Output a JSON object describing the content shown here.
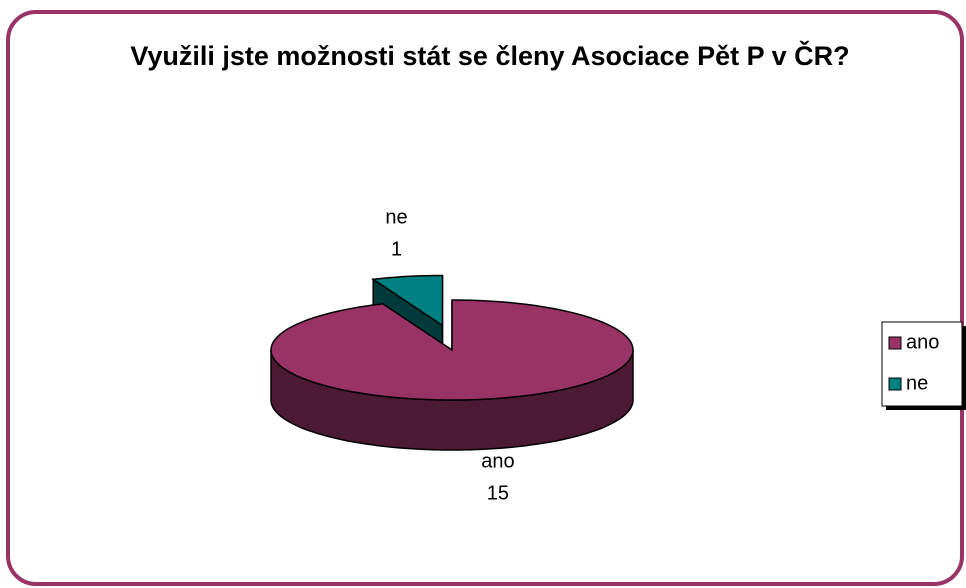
{
  "chart_data": {
    "type": "pie3d",
    "title": "Využili jste možnosti stát se členy Asociace Pět P v ČR?",
    "categories": [
      "ano",
      "ne"
    ],
    "values": [
      15,
      1
    ],
    "series": [
      {
        "name": "ano",
        "color": "#993366"
      },
      {
        "name": "ne",
        "color": "#008080"
      }
    ],
    "legend": "right",
    "exploded": "ne"
  }
}
